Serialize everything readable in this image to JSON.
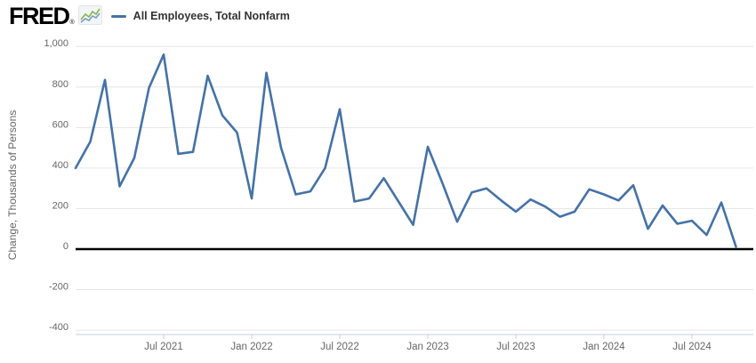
{
  "header": {
    "logo_text": "FRED",
    "logo_registered": "®",
    "legend": {
      "label": "All Employees, Total Nonfarm"
    }
  },
  "y_axis": {
    "title": "Change, Thousands of Persons",
    "ticks": [
      {
        "value": 1000,
        "label": "1,000"
      },
      {
        "value": 800,
        "label": "800"
      },
      {
        "value": 600,
        "label": "600"
      },
      {
        "value": 400,
        "label": "400"
      },
      {
        "value": 200,
        "label": "200"
      },
      {
        "value": 0,
        "label": "0"
      },
      {
        "value": -200,
        "label": "-200"
      },
      {
        "value": -400,
        "label": "-400"
      }
    ]
  },
  "x_axis": {
    "ticks": [
      {
        "month_index": 6,
        "label": "Jul 2021"
      },
      {
        "month_index": 12,
        "label": "Jan 2022"
      },
      {
        "month_index": 18,
        "label": "Jul 2022"
      },
      {
        "month_index": 24,
        "label": "Jan 2023"
      },
      {
        "month_index": 30,
        "label": "Jul 2023"
      },
      {
        "month_index": 36,
        "label": "Jan 2024"
      },
      {
        "month_index": 42,
        "label": "Jul 2024"
      }
    ]
  },
  "chart_data": {
    "type": "line",
    "title": "All Employees, Total Nonfarm",
    "ylabel": "Change, Thousands of Persons",
    "ylim": [
      -400,
      1000
    ],
    "grid": true,
    "legend_position": "top-left",
    "line_color": "#4572a7",
    "zero_line_color": "#000000",
    "grid_color": "#e6e6e6",
    "axis_color": "#c0d0e0",
    "tick_label_color": "#666666",
    "x": [
      "Jan 2021",
      "Feb 2021",
      "Mar 2021",
      "Apr 2021",
      "May 2021",
      "Jun 2021",
      "Jul 2021",
      "Aug 2021",
      "Sep 2021",
      "Oct 2021",
      "Nov 2021",
      "Dec 2021",
      "Jan 2022",
      "Feb 2022",
      "Mar 2022",
      "Apr 2022",
      "May 2022",
      "Jun 2022",
      "Jul 2022",
      "Aug 2022",
      "Sep 2022",
      "Oct 2022",
      "Nov 2022",
      "Dec 2022",
      "Jan 2023",
      "Feb 2023",
      "Mar 2023",
      "Apr 2023",
      "May 2023",
      "Jun 2023",
      "Jul 2023",
      "Aug 2023",
      "Sep 2023",
      "Oct 2023",
      "Nov 2023",
      "Dec 2023",
      "Jan 2024",
      "Feb 2024",
      "Mar 2024",
      "Apr 2024",
      "May 2024",
      "Jun 2024",
      "Jul 2024",
      "Aug 2024",
      "Sep 2024",
      "Oct 2024"
    ],
    "values": [
      400,
      530,
      835,
      310,
      450,
      795,
      960,
      470,
      480,
      855,
      660,
      575,
      250,
      870,
      500,
      270,
      285,
      400,
      690,
      235,
      250,
      350,
      235,
      120,
      505,
      325,
      135,
      280,
      300,
      240,
      185,
      245,
      210,
      160,
      185,
      295,
      270,
      240,
      315,
      100,
      215,
      125,
      140,
      70,
      230,
      12
    ]
  }
}
